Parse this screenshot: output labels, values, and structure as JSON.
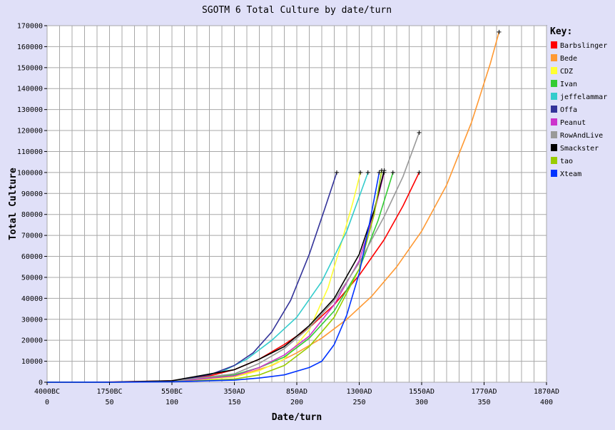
{
  "chart_data": {
    "type": "line",
    "title": "SGOTM 6 Total Culture by date/turn",
    "xlabel": "Date/turn",
    "ylabel": "Total Culture",
    "xlim": [
      0,
      400
    ],
    "ylim": [
      0,
      170000
    ],
    "x_ticks": [
      0,
      50,
      100,
      150,
      200,
      250,
      300,
      350,
      400
    ],
    "x_date_labels": [
      "4000BC",
      "1750BC",
      "550BC",
      "350AD",
      "850AD",
      "1300AD",
      "1550AD",
      "1770AD",
      "1870AD"
    ],
    "y_ticks": [
      0,
      10000,
      20000,
      30000,
      40000,
      50000,
      60000,
      70000,
      80000,
      90000,
      100000,
      110000,
      120000,
      130000,
      140000,
      150000,
      160000,
      170000
    ],
    "grid": true,
    "legend_title": "Key:",
    "legend_position": "right",
    "series": [
      {
        "name": "Barbslinger",
        "color": "#ff0000",
        "x": [
          0,
          50,
          100,
          130,
          150,
          170,
          190,
          210,
          230,
          250,
          270,
          285,
          298
        ],
        "y": [
          0,
          100,
          700,
          3000,
          6000,
          11000,
          18000,
          26000,
          37000,
          51000,
          68000,
          84000,
          100000
        ]
      },
      {
        "name": "Bede",
        "color": "#ff9933",
        "x": [
          0,
          50,
          100,
          150,
          180,
          200,
          220,
          240,
          260,
          280,
          300,
          320,
          340,
          355,
          362
        ],
        "y": [
          0,
          50,
          300,
          2500,
          8000,
          14000,
          21000,
          30000,
          41000,
          55000,
          72000,
          94000,
          124000,
          152000,
          167000
        ]
      },
      {
        "name": "CDZ",
        "color": "#ffff33",
        "x": [
          0,
          50,
          100,
          150,
          170,
          190,
          210,
          225,
          235,
          245,
          251
        ],
        "y": [
          0,
          50,
          300,
          2500,
          5500,
          11000,
          25000,
          45000,
          65000,
          86000,
          100000
        ]
      },
      {
        "name": "Ivan",
        "color": "#33cc33",
        "x": [
          0,
          50,
          100,
          150,
          170,
          190,
          210,
          230,
          250,
          265,
          277
        ],
        "y": [
          0,
          50,
          300,
          3500,
          7000,
          12000,
          21000,
          34000,
          54000,
          77000,
          100000
        ]
      },
      {
        "name": "jeffelammar",
        "color": "#33cccc",
        "x": [
          0,
          50,
          100,
          140,
          160,
          180,
          200,
          220,
          240,
          257
        ],
        "y": [
          0,
          50,
          500,
          5000,
          11000,
          20000,
          31000,
          48000,
          72000,
          100000
        ]
      },
      {
        "name": "Offa",
        "color": "#333399",
        "x": [
          0,
          50,
          100,
          130,
          150,
          165,
          180,
          195,
          210,
          222,
          232
        ],
        "y": [
          0,
          50,
          400,
          3500,
          8000,
          14000,
          24000,
          39000,
          61000,
          82000,
          100000
        ]
      },
      {
        "name": "Peanut",
        "color": "#cc33cc",
        "x": [
          0,
          50,
          100,
          150,
          170,
          190,
          210,
          230,
          250,
          262,
          270
        ],
        "y": [
          0,
          50,
          300,
          3000,
          7000,
          13000,
          22000,
          37000,
          58000,
          81000,
          100000
        ]
      },
      {
        "name": "RowAndLive",
        "color": "#999999",
        "x": [
          0,
          50,
          100,
          150,
          170,
          190,
          210,
          230,
          250,
          270,
          285,
          298
        ],
        "y": [
          0,
          50,
          400,
          4000,
          9000,
          16000,
          26000,
          39000,
          57000,
          79000,
          98000,
          119000
        ]
      },
      {
        "name": "Smackster",
        "color": "#000000",
        "x": [
          0,
          50,
          100,
          150,
          170,
          190,
          210,
          230,
          250,
          262,
          270
        ],
        "y": [
          0,
          50,
          700,
          6000,
          11000,
          17000,
          27000,
          40000,
          61000,
          82000,
          101000
        ]
      },
      {
        "name": "tao",
        "color": "#99cc00",
        "x": [
          0,
          50,
          100,
          150,
          170,
          190,
          210,
          230,
          250,
          262,
          268
        ],
        "y": [
          0,
          50,
          200,
          1500,
          3500,
          8000,
          17000,
          31000,
          54000,
          80000,
          101000
        ]
      },
      {
        "name": "Xteam",
        "color": "#0033ff",
        "x": [
          0,
          50,
          100,
          150,
          170,
          190,
          210,
          220,
          230,
          240,
          250,
          258,
          266
        ],
        "y": [
          0,
          20,
          200,
          1000,
          2000,
          3500,
          7000,
          10000,
          18000,
          32000,
          52000,
          75000,
          100000
        ]
      }
    ]
  }
}
